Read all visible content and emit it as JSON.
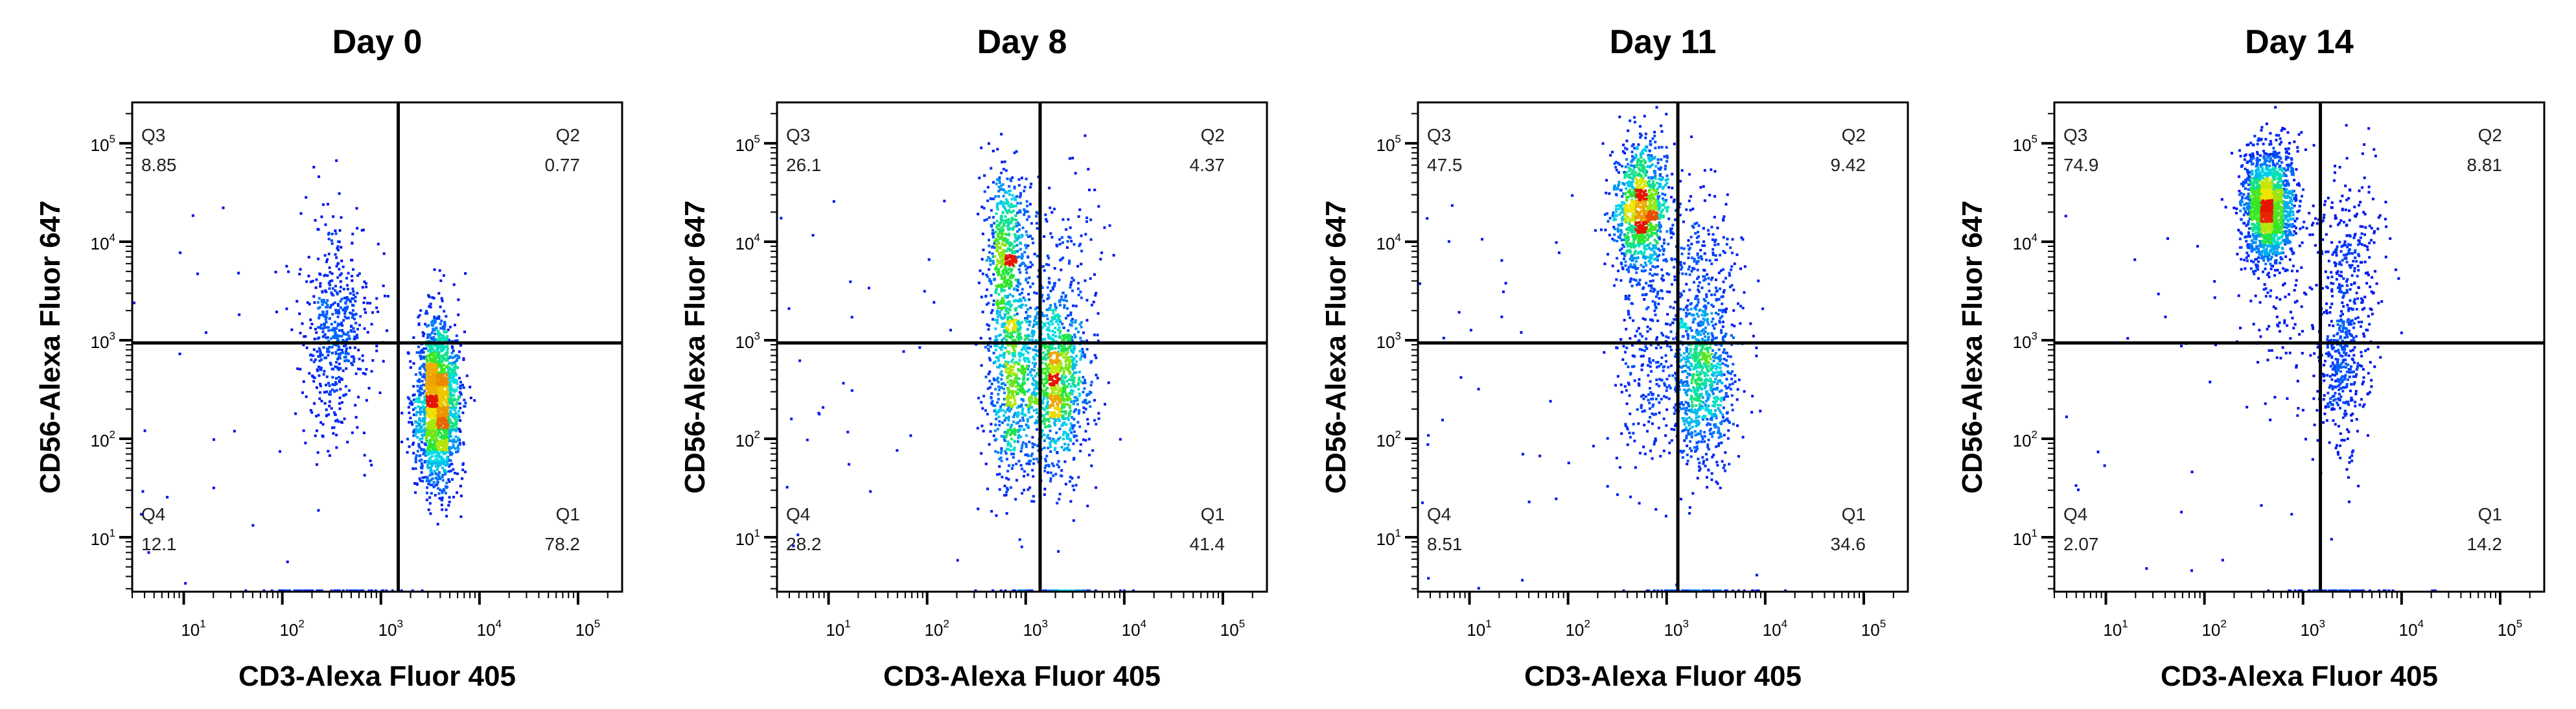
{
  "chart_data": [
    {
      "type": "scatter",
      "title": "Day 0",
      "xlabel": "CD3-Alexa Fluor 405",
      "ylabel": "CD56-Alexa Fluor 647",
      "x_scale": "log",
      "y_scale": "log",
      "xlim": [
        3,
        280000
      ],
      "ylim": [
        2.8,
        260000
      ],
      "x_ticks": [
        10,
        100,
        1000,
        10000,
        100000
      ],
      "y_ticks": [
        10,
        100,
        1000,
        10000,
        100000
      ],
      "gate": {
        "x": 1500,
        "y": 940
      },
      "quadrants": [
        {
          "name": "Q1",
          "value": "78.2"
        },
        {
          "name": "Q2",
          "value": "0.77"
        },
        {
          "name": "Q3",
          "value": "8.85"
        },
        {
          "name": "Q4",
          "value": "12.1"
        }
      ],
      "color_scale": "density (blue-cyan-green-yellow-red)"
    },
    {
      "type": "scatter",
      "title": "Day 8",
      "xlabel": "CD3-Alexa Fluor 405",
      "ylabel": "CD56-Alexa Fluor 647",
      "x_scale": "log",
      "y_scale": "log",
      "xlim": [
        3,
        280000
      ],
      "ylim": [
        2.8,
        260000
      ],
      "x_ticks": [
        10,
        100,
        1000,
        10000,
        100000
      ],
      "y_ticks": [
        10,
        100,
        1000,
        10000,
        100000
      ],
      "gate": {
        "x": 1400,
        "y": 940
      },
      "quadrants": [
        {
          "name": "Q1",
          "value": "41.4"
        },
        {
          "name": "Q2",
          "value": "4.37"
        },
        {
          "name": "Q3",
          "value": "26.1"
        },
        {
          "name": "Q4",
          "value": "28.2"
        }
      ],
      "color_scale": "density (blue-cyan-green-yellow-red)"
    },
    {
      "type": "scatter",
      "title": "Day 11",
      "xlabel": "CD3-Alexa Fluor 405",
      "ylabel": "CD56-Alexa Fluor 647",
      "x_scale": "log",
      "y_scale": "log",
      "xlim": [
        3,
        280000
      ],
      "ylim": [
        2.8,
        260000
      ],
      "x_ticks": [
        10,
        100,
        1000,
        10000,
        100000
      ],
      "y_ticks": [
        10,
        100,
        1000,
        10000,
        100000
      ],
      "gate": {
        "x": 1300,
        "y": 940
      },
      "quadrants": [
        {
          "name": "Q1",
          "value": "34.6"
        },
        {
          "name": "Q2",
          "value": "9.42"
        },
        {
          "name": "Q3",
          "value": "47.5"
        },
        {
          "name": "Q4",
          "value": "8.51"
        }
      ],
      "color_scale": "density (blue-cyan-green-yellow-red)"
    },
    {
      "type": "scatter",
      "title": "Day 14",
      "xlabel": "CD3-Alexa Fluor 405",
      "ylabel": "CD56-Alexa Fluor 647",
      "x_scale": "log",
      "y_scale": "log",
      "xlim": [
        3,
        280000
      ],
      "ylim": [
        2.8,
        260000
      ],
      "x_ticks": [
        10,
        100,
        1000,
        10000,
        100000
      ],
      "y_ticks": [
        10,
        100,
        1000,
        10000,
        100000
      ],
      "gate": {
        "x": 1500,
        "y": 940
      },
      "quadrants": [
        {
          "name": "Q1",
          "value": "14.2"
        },
        {
          "name": "Q2",
          "value": "8.81"
        },
        {
          "name": "Q3",
          "value": "74.9"
        },
        {
          "name": "Q4",
          "value": "2.07"
        }
      ],
      "color_scale": "density (blue-cyan-green-yellow-red)"
    }
  ]
}
